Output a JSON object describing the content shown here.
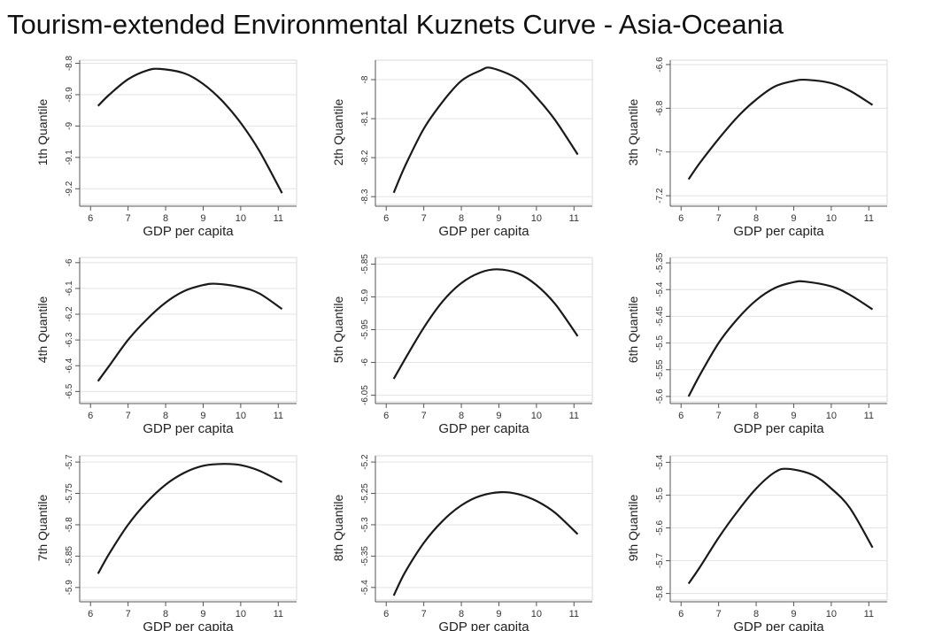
{
  "title": "Tourism-extended Environmental Kuznets Curve - Asia-Oceania",
  "chart_data": [
    {
      "type": "line",
      "ylabel": "1th Quantile",
      "xlabel": "GDP per capita",
      "x_ticks": [
        6,
        7,
        8,
        9,
        10,
        11
      ],
      "y_ticks": [
        "-9.2",
        "-9.1",
        "-9",
        "-8.9",
        "-8.8"
      ],
      "ylim": [
        -9.25,
        -8.79
      ],
      "xlim": [
        5.9,
        11.3
      ],
      "grid": true,
      "curve": {
        "x": [
          6.2,
          6.5,
          7,
          7.5,
          7.85,
          8.5,
          9,
          9.5,
          10,
          10.5,
          11.1
        ],
        "y": [
          -8.936,
          -8.9,
          -8.851,
          -8.823,
          -8.818,
          -8.832,
          -8.866,
          -8.919,
          -8.99,
          -9.08,
          -9.214
        ]
      }
    },
    {
      "type": "line",
      "ylabel": "2th Quantile",
      "xlabel": "GDP per capita",
      "x_ticks": [
        6,
        7,
        8,
        9,
        10,
        11
      ],
      "y_ticks": [
        "-8.3",
        "-8.2",
        "-8.1",
        "-8"
      ],
      "ylim": [
        -8.32,
        -7.95
      ],
      "xlim": [
        5.9,
        11.3
      ],
      "grid": true,
      "curve": {
        "x": [
          6.2,
          6.5,
          7,
          7.5,
          8,
          8.5,
          8.8,
          9.5,
          10,
          10.5,
          11.1
        ],
        "y": [
          -8.29,
          -8.222,
          -8.126,
          -8.057,
          -8.003,
          -7.977,
          -7.97,
          -7.998,
          -8.045,
          -8.104,
          -8.192
        ]
      }
    },
    {
      "type": "line",
      "ylabel": "3th Quantile",
      "xlabel": "GDP per capita",
      "x_ticks": [
        6,
        7,
        8,
        9,
        10,
        11
      ],
      "y_ticks": [
        "-7.2",
        "-7",
        "-6.8",
        "-6.6"
      ],
      "ylim": [
        -7.24,
        -6.58
      ],
      "xlim": [
        5.9,
        11.3
      ],
      "grid": true,
      "curve": {
        "x": [
          6.2,
          6.5,
          7,
          7.5,
          8,
          8.5,
          9,
          9.35,
          10,
          10.5,
          11.1
        ],
        "y": [
          -7.125,
          -7.05,
          -6.94,
          -6.84,
          -6.76,
          -6.7,
          -6.675,
          -6.67,
          -6.685,
          -6.72,
          -6.785
        ]
      }
    },
    {
      "type": "line",
      "ylabel": "4th Quantile",
      "xlabel": "GDP per capita",
      "x_ticks": [
        6,
        7,
        8,
        9,
        10,
        11
      ],
      "y_ticks": [
        "-6.5",
        "-6.4",
        "-6.3",
        "-6.2",
        "-6.1",
        "-6"
      ],
      "ylim": [
        -6.54,
        -5.98
      ],
      "xlim": [
        5.9,
        11.3
      ],
      "grid": true,
      "curve": {
        "x": [
          6.2,
          6.5,
          7,
          7.5,
          8,
          8.5,
          9,
          9.35,
          10,
          10.5,
          11.1
        ],
        "y": [
          -6.46,
          -6.4,
          -6.3,
          -6.22,
          -6.155,
          -6.11,
          -6.087,
          -6.082,
          -6.095,
          -6.12,
          -6.18
        ]
      }
    },
    {
      "type": "line",
      "ylabel": "5th Quantile",
      "xlabel": "GDP per capita",
      "x_ticks": [
        6,
        7,
        8,
        9,
        10,
        11
      ],
      "y_ticks": [
        "-6.05",
        "-6",
        "-5.95",
        "-5.9",
        "-5.85"
      ],
      "ylim": [
        -6.06,
        -5.84
      ],
      "xlim": [
        5.9,
        11.3
      ],
      "grid": true,
      "curve": {
        "x": [
          6.2,
          6.5,
          7,
          7.5,
          8,
          8.5,
          8.95,
          9.5,
          10,
          10.5,
          11.1
        ],
        "y": [
          -6.025,
          -5.995,
          -5.947,
          -5.907,
          -5.879,
          -5.863,
          -5.858,
          -5.864,
          -5.882,
          -5.911,
          -5.96
        ]
      }
    },
    {
      "type": "line",
      "ylabel": "6th Quantile",
      "xlabel": "GDP per capita",
      "x_ticks": [
        6,
        7,
        8,
        9,
        10,
        11
      ],
      "y_ticks": [
        "-5.6",
        "-5.55",
        "-5.5",
        "-5.45",
        "-5.4",
        "-5.35"
      ],
      "ylim": [
        -5.61,
        -5.34
      ],
      "xlim": [
        5.9,
        11.3
      ],
      "grid": true,
      "curve": {
        "x": [
          6.2,
          6.5,
          7,
          7.5,
          8,
          8.5,
          9,
          9.3,
          10,
          10.5,
          11.1
        ],
        "y": [
          -5.6,
          -5.56,
          -5.5,
          -5.455,
          -5.42,
          -5.397,
          -5.386,
          -5.385,
          -5.394,
          -5.41,
          -5.437
        ]
      }
    },
    {
      "type": "line",
      "ylabel": "7th Quantile",
      "xlabel": "GDP per capita",
      "x_ticks": [
        6,
        7,
        8,
        9,
        10,
        11
      ],
      "y_ticks": [
        "-5.9",
        "-5.85",
        "-5.8",
        "-5.75",
        "-5.7"
      ],
      "ylim": [
        -5.92,
        -5.69
      ],
      "xlim": [
        5.9,
        11.3
      ],
      "grid": true,
      "curve": {
        "x": [
          6.2,
          6.5,
          7,
          7.5,
          8,
          8.5,
          9,
          9.55,
          10,
          10.5,
          11.1
        ],
        "y": [
          -5.878,
          -5.846,
          -5.8,
          -5.764,
          -5.736,
          -5.717,
          -5.706,
          -5.703,
          -5.705,
          -5.714,
          -5.732
        ]
      }
    },
    {
      "type": "line",
      "ylabel": "8th Quantile",
      "xlabel": "GDP per capita",
      "x_ticks": [
        6,
        7,
        8,
        9,
        10,
        11
      ],
      "y_ticks": [
        "-5.4",
        "-5.35",
        "-5.3",
        "-5.25",
        "-5.2"
      ],
      "ylim": [
        -5.42,
        -5.19
      ],
      "xlim": [
        5.9,
        11.3
      ],
      "grid": true,
      "curve": {
        "x": [
          6.2,
          6.5,
          7,
          7.5,
          8,
          8.5,
          9.05,
          9.5,
          10,
          10.5,
          11.1
        ],
        "y": [
          -5.413,
          -5.376,
          -5.329,
          -5.294,
          -5.269,
          -5.254,
          -5.248,
          -5.251,
          -5.262,
          -5.281,
          -5.315
        ]
      }
    },
    {
      "type": "line",
      "ylabel": "9th Quantile",
      "xlabel": "GDP per capita",
      "x_ticks": [
        6,
        7,
        8,
        9,
        10,
        11
      ],
      "y_ticks": [
        "-5.8",
        "-5.7",
        "-5.6",
        "-5.5",
        "-5.4"
      ],
      "ylim": [
        -5.82,
        -5.38
      ],
      "xlim": [
        5.9,
        11.3
      ],
      "grid": true,
      "curve": {
        "x": [
          6.2,
          6.5,
          7,
          7.5,
          8,
          8.5,
          8.85,
          9.5,
          10,
          10.5,
          11.1
        ],
        "y": [
          -5.77,
          -5.72,
          -5.63,
          -5.55,
          -5.48,
          -5.43,
          -5.42,
          -5.438,
          -5.48,
          -5.54,
          -5.66
        ]
      }
    }
  ]
}
